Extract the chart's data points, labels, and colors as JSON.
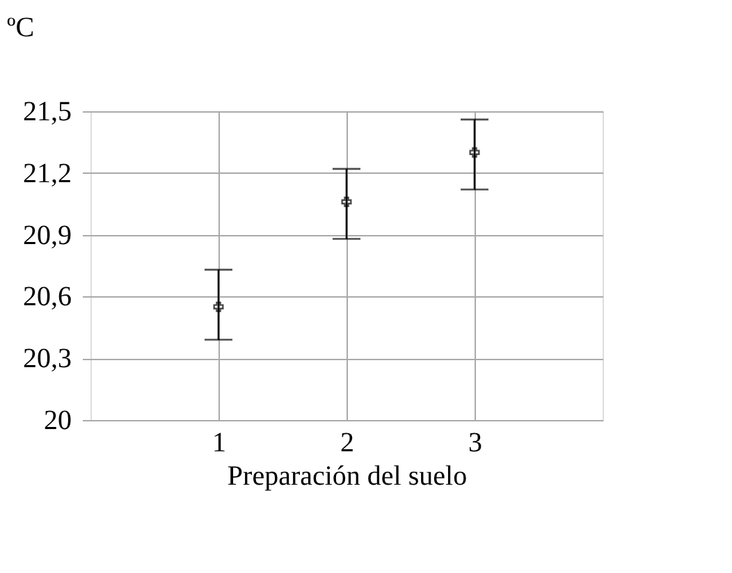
{
  "chart_data": {
    "type": "scatter",
    "xlabel": "Preparación del suelo",
    "ylabel": "ºC",
    "x": [
      1,
      2,
      3
    ],
    "series": [
      {
        "color": "#000000",
        "values": [
          20.55,
          21.06,
          21.3
        ],
        "errors": [
          [
            20.39,
            20.73
          ],
          [
            20.88,
            21.22
          ],
          [
            21.12,
            21.46
          ]
        ]
      }
    ],
    "xlim": [
      0,
      4
    ],
    "xticks": [
      1,
      2,
      3
    ],
    "ylim": [
      20,
      21.5
    ],
    "yticks": [
      20,
      {
        "value": 20.3,
        "label": "20,3"
      },
      {
        "value": 20.6,
        "label": "20,6"
      },
      {
        "value": 20.9,
        "label": "20,9"
      },
      {
        "value": 21.2,
        "label": "21,2"
      },
      {
        "value": 21.5,
        "label": "21,5"
      }
    ],
    "grid": true,
    "marker": "cross"
  }
}
